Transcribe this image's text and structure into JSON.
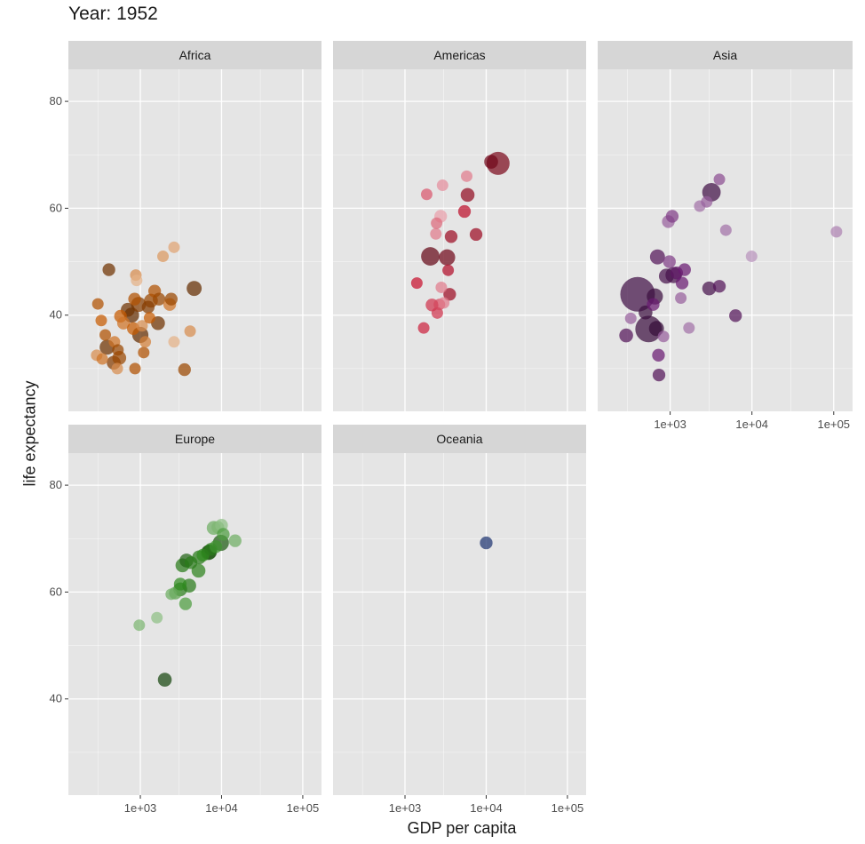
{
  "title": "Year: 1952",
  "colors": {
    "panel_bg": "#e5e5e5",
    "strip_bg": "#d6d6d6",
    "grid": "#ffffff",
    "africa": "#c65a00",
    "americas": "#c8102e",
    "asia": "#6a1b72",
    "europe": "#2f8a1e",
    "oceania": "#2e4fa8"
  },
  "chart_data": {
    "type": "scatter",
    "title": "Year: 1952",
    "xlabel": "GDP per capita",
    "ylabel": "life expectancy",
    "x_scale": "log10",
    "xlim": [
      130,
      170000
    ],
    "ylim": [
      22,
      86
    ],
    "x_ticks": [
      1000,
      10000,
      100000
    ],
    "x_tick_labels": [
      "1e+03",
      "1e+04",
      "1e+05"
    ],
    "y_ticks": [
      40,
      60,
      80
    ],
    "y_tick_labels": [
      "40",
      "60",
      "80"
    ],
    "grid": true,
    "facets": [
      {
        "name": "Africa",
        "color": "#c65a00",
        "points": [
          {
            "x": 300,
            "y": 42.1,
            "size": 1,
            "shade": 0.6
          },
          {
            "x": 330,
            "y": 39.0,
            "size": 1,
            "shade": 0.5
          },
          {
            "x": 370,
            "y": 36.3,
            "size": 1,
            "shade": 0.6
          },
          {
            "x": 390,
            "y": 34.0,
            "size": 1.3,
            "shade": 0.9
          },
          {
            "x": 290,
            "y": 32.5,
            "size": 1,
            "shade": 0.3
          },
          {
            "x": 340,
            "y": 31.8,
            "size": 1,
            "shade": 0.4
          },
          {
            "x": 470,
            "y": 31.1,
            "size": 1.2,
            "shade": 0.8
          },
          {
            "x": 520,
            "y": 30.0,
            "size": 1,
            "shade": 0.3
          },
          {
            "x": 550,
            "y": 32.0,
            "size": 1.2,
            "shade": 0.7
          },
          {
            "x": 410,
            "y": 48.5,
            "size": 1.1,
            "shade": 0.9
          },
          {
            "x": 480,
            "y": 35.0,
            "size": 1,
            "shade": 0.4
          },
          {
            "x": 530,
            "y": 33.5,
            "size": 1,
            "shade": 0.7
          },
          {
            "x": 570,
            "y": 39.8,
            "size": 1.1,
            "shade": 0.5
          },
          {
            "x": 620,
            "y": 38.5,
            "size": 1.1,
            "shade": 0.4
          },
          {
            "x": 700,
            "y": 41.0,
            "size": 1.2,
            "shade": 0.9
          },
          {
            "x": 780,
            "y": 40.0,
            "size": 1.3,
            "shade": 0.95
          },
          {
            "x": 820,
            "y": 37.5,
            "size": 1.1,
            "shade": 0.5
          },
          {
            "x": 850,
            "y": 43.0,
            "size": 1.1,
            "shade": 0.6
          },
          {
            "x": 880,
            "y": 47.5,
            "size": 1,
            "shade": 0.3
          },
          {
            "x": 900,
            "y": 46.5,
            "size": 1,
            "shade": 0.15
          },
          {
            "x": 860,
            "y": 30.0,
            "size": 1,
            "shade": 0.6
          },
          {
            "x": 950,
            "y": 42.0,
            "size": 1.3,
            "shade": 0.8
          },
          {
            "x": 1000,
            "y": 36.3,
            "size": 1.4,
            "shade": 0.95
          },
          {
            "x": 1050,
            "y": 38.0,
            "size": 1,
            "shade": 0.3
          },
          {
            "x": 1100,
            "y": 33.0,
            "size": 1,
            "shade": 0.6
          },
          {
            "x": 1150,
            "y": 35.0,
            "size": 1,
            "shade": 0.35
          },
          {
            "x": 1250,
            "y": 41.5,
            "size": 1.1,
            "shade": 0.8
          },
          {
            "x": 1300,
            "y": 39.5,
            "size": 1,
            "shade": 0.5
          },
          {
            "x": 1350,
            "y": 42.7,
            "size": 1.2,
            "shade": 0.7
          },
          {
            "x": 1500,
            "y": 44.5,
            "size": 1.1,
            "shade": 0.6
          },
          {
            "x": 1650,
            "y": 38.5,
            "size": 1.2,
            "shade": 0.9
          },
          {
            "x": 1700,
            "y": 43.0,
            "size": 1.1,
            "shade": 0.7
          },
          {
            "x": 1900,
            "y": 51.0,
            "size": 1,
            "shade": 0.25
          },
          {
            "x": 2300,
            "y": 42.0,
            "size": 1.1,
            "shade": 0.4
          },
          {
            "x": 2400,
            "y": 43.0,
            "size": 1.1,
            "shade": 0.7
          },
          {
            "x": 2600,
            "y": 52.7,
            "size": 1,
            "shade": 0.2
          },
          {
            "x": 2600,
            "y": 35.0,
            "size": 1,
            "shade": 0.15
          },
          {
            "x": 3500,
            "y": 29.8,
            "size": 1.1,
            "shade": 0.7
          },
          {
            "x": 4100,
            "y": 37.0,
            "size": 1,
            "shade": 0.3
          },
          {
            "x": 4600,
            "y": 45.0,
            "size": 1.3,
            "shade": 0.95
          }
        ]
      },
      {
        "name": "Americas",
        "color": "#c8102e",
        "points": [
          {
            "x": 1400,
            "y": 46.0,
            "size": 1,
            "shade": 0.5
          },
          {
            "x": 1700,
            "y": 37.6,
            "size": 1,
            "shade": 0.45
          },
          {
            "x": 1850,
            "y": 62.6,
            "size": 1,
            "shade": 0.3
          },
          {
            "x": 2050,
            "y": 51.0,
            "size": 1.6,
            "shade": 0.95
          },
          {
            "x": 2150,
            "y": 41.9,
            "size": 1.1,
            "shade": 0.4
          },
          {
            "x": 2400,
            "y": 55.2,
            "size": 1,
            "shade": 0.2
          },
          {
            "x": 2450,
            "y": 57.2,
            "size": 1,
            "shade": 0.25
          },
          {
            "x": 2500,
            "y": 40.4,
            "size": 1,
            "shade": 0.4
          },
          {
            "x": 2650,
            "y": 42.0,
            "size": 1,
            "shade": 0.35
          },
          {
            "x": 2750,
            "y": 58.5,
            "size": 1.1,
            "shade": 0.1
          },
          {
            "x": 2800,
            "y": 45.2,
            "size": 1,
            "shade": 0.2
          },
          {
            "x": 2900,
            "y": 64.3,
            "size": 1,
            "shade": 0.15
          },
          {
            "x": 3000,
            "y": 42.3,
            "size": 1,
            "shade": 0.2
          },
          {
            "x": 3300,
            "y": 50.8,
            "size": 1.4,
            "shade": 0.9
          },
          {
            "x": 3400,
            "y": 48.4,
            "size": 1,
            "shade": 0.6
          },
          {
            "x": 3550,
            "y": 43.9,
            "size": 1.1,
            "shade": 0.7
          },
          {
            "x": 3700,
            "y": 54.7,
            "size": 1.1,
            "shade": 0.7
          },
          {
            "x": 5400,
            "y": 59.4,
            "size": 1.1,
            "shade": 0.55
          },
          {
            "x": 5750,
            "y": 66.0,
            "size": 1,
            "shade": 0.2
          },
          {
            "x": 5900,
            "y": 62.5,
            "size": 1.2,
            "shade": 0.75
          },
          {
            "x": 7500,
            "y": 55.1,
            "size": 1.1,
            "shade": 0.7
          },
          {
            "x": 11500,
            "y": 68.7,
            "size": 1.2,
            "shade": 0.9
          },
          {
            "x": 13990,
            "y": 68.4,
            "size": 2.0,
            "shade": 0.85
          }
        ]
      },
      {
        "name": "Asia",
        "color": "#6a1b72",
        "points": [
          {
            "x": 290,
            "y": 36.2,
            "size": 1.2,
            "shade": 0.7
          },
          {
            "x": 330,
            "y": 39.4,
            "size": 1,
            "shade": 0.3
          },
          {
            "x": 400,
            "y": 43.9,
            "size": 3.0,
            "shade": 0.85
          },
          {
            "x": 500,
            "y": 40.5,
            "size": 1.2,
            "shade": 0.9
          },
          {
            "x": 545,
            "y": 37.4,
            "size": 2.3,
            "shade": 0.9
          },
          {
            "x": 620,
            "y": 42.0,
            "size": 1.1,
            "shade": 0.5
          },
          {
            "x": 650,
            "y": 43.5,
            "size": 1.4,
            "shade": 0.9
          },
          {
            "x": 680,
            "y": 37.5,
            "size": 1.3,
            "shade": 0.95
          },
          {
            "x": 700,
            "y": 50.9,
            "size": 1.3,
            "shade": 0.7
          },
          {
            "x": 720,
            "y": 32.5,
            "size": 1.1,
            "shade": 0.5
          },
          {
            "x": 730,
            "y": 28.8,
            "size": 1.1,
            "shade": 0.7
          },
          {
            "x": 830,
            "y": 36.0,
            "size": 1,
            "shade": 0.3
          },
          {
            "x": 900,
            "y": 47.3,
            "size": 1.3,
            "shade": 0.8
          },
          {
            "x": 950,
            "y": 57.5,
            "size": 1.1,
            "shade": 0.3
          },
          {
            "x": 980,
            "y": 50.0,
            "size": 1.1,
            "shade": 0.4
          },
          {
            "x": 1060,
            "y": 58.5,
            "size": 1.1,
            "shade": 0.4
          },
          {
            "x": 1100,
            "y": 47.5,
            "size": 1.4,
            "shade": 0.8
          },
          {
            "x": 1200,
            "y": 47.9,
            "size": 1.1,
            "shade": 0.6
          },
          {
            "x": 1350,
            "y": 43.2,
            "size": 1,
            "shade": 0.3
          },
          {
            "x": 1400,
            "y": 46.0,
            "size": 1.1,
            "shade": 0.5
          },
          {
            "x": 1500,
            "y": 48.5,
            "size": 1.1,
            "shade": 0.5
          },
          {
            "x": 1700,
            "y": 37.6,
            "size": 1,
            "shade": 0.25
          },
          {
            "x": 2300,
            "y": 60.4,
            "size": 1,
            "shade": 0.25
          },
          {
            "x": 2800,
            "y": 61.2,
            "size": 1,
            "shade": 0.3
          },
          {
            "x": 3000,
            "y": 45.0,
            "size": 1.2,
            "shade": 0.8
          },
          {
            "x": 3200,
            "y": 63.0,
            "size": 1.6,
            "shade": 0.85
          },
          {
            "x": 4000,
            "y": 45.4,
            "size": 1.1,
            "shade": 0.7
          },
          {
            "x": 4000,
            "y": 65.4,
            "size": 1,
            "shade": 0.35
          },
          {
            "x": 4800,
            "y": 55.9,
            "size": 1,
            "shade": 0.25
          },
          {
            "x": 6300,
            "y": 39.9,
            "size": 1.1,
            "shade": 0.7
          },
          {
            "x": 9900,
            "y": 51.0,
            "size": 1,
            "shade": 0.15
          },
          {
            "x": 108000,
            "y": 55.6,
            "size": 1,
            "shade": 0.2
          }
        ]
      },
      {
        "name": "Europe",
        "color": "#2f8a1e",
        "points": [
          {
            "x": 970,
            "y": 53.8,
            "size": 1,
            "shade": 0.25
          },
          {
            "x": 1600,
            "y": 55.2,
            "size": 1,
            "shade": 0.2
          },
          {
            "x": 2000,
            "y": 43.6,
            "size": 1.2,
            "shade": 0.95
          },
          {
            "x": 2400,
            "y": 59.6,
            "size": 1,
            "shade": 0.3
          },
          {
            "x": 2700,
            "y": 59.8,
            "size": 1.1,
            "shade": 0.35
          },
          {
            "x": 3100,
            "y": 60.5,
            "size": 1.2,
            "shade": 0.6
          },
          {
            "x": 3100,
            "y": 61.5,
            "size": 1.1,
            "shade": 0.5
          },
          {
            "x": 3300,
            "y": 65.0,
            "size": 1.2,
            "shade": 0.6
          },
          {
            "x": 3600,
            "y": 57.8,
            "size": 1.1,
            "shade": 0.4
          },
          {
            "x": 3700,
            "y": 65.9,
            "size": 1.2,
            "shade": 0.75
          },
          {
            "x": 4000,
            "y": 61.2,
            "size": 1.2,
            "shade": 0.6
          },
          {
            "x": 4200,
            "y": 65.5,
            "size": 1.1,
            "shade": 0.6
          },
          {
            "x": 5200,
            "y": 64.0,
            "size": 1.2,
            "shade": 0.55
          },
          {
            "x": 5300,
            "y": 66.5,
            "size": 1.2,
            "shade": 0.6
          },
          {
            "x": 5900,
            "y": 66.9,
            "size": 1.1,
            "shade": 0.5
          },
          {
            "x": 6900,
            "y": 67.4,
            "size": 1.3,
            "shade": 0.8
          },
          {
            "x": 7100,
            "y": 67.5,
            "size": 1.3,
            "shade": 0.85
          },
          {
            "x": 7400,
            "y": 68.0,
            "size": 1.1,
            "shade": 0.6
          },
          {
            "x": 8000,
            "y": 72.0,
            "size": 1.2,
            "shade": 0.3
          },
          {
            "x": 8500,
            "y": 68.5,
            "size": 1.1,
            "shade": 0.45
          },
          {
            "x": 9000,
            "y": 72.1,
            "size": 1.1,
            "shade": 0.25
          },
          {
            "x": 9800,
            "y": 69.2,
            "size": 1.4,
            "shade": 0.8
          },
          {
            "x": 10000,
            "y": 72.5,
            "size": 1.1,
            "shade": 0.2
          },
          {
            "x": 10500,
            "y": 70.8,
            "size": 1.1,
            "shade": 0.4
          },
          {
            "x": 14700,
            "y": 69.6,
            "size": 1.1,
            "shade": 0.3
          }
        ]
      },
      {
        "name": "Oceania",
        "color": "#2e4fa8",
        "points": [
          {
            "x": 10000,
            "y": 69.2,
            "size": 1.1,
            "shade": 0.8
          }
        ]
      }
    ]
  }
}
